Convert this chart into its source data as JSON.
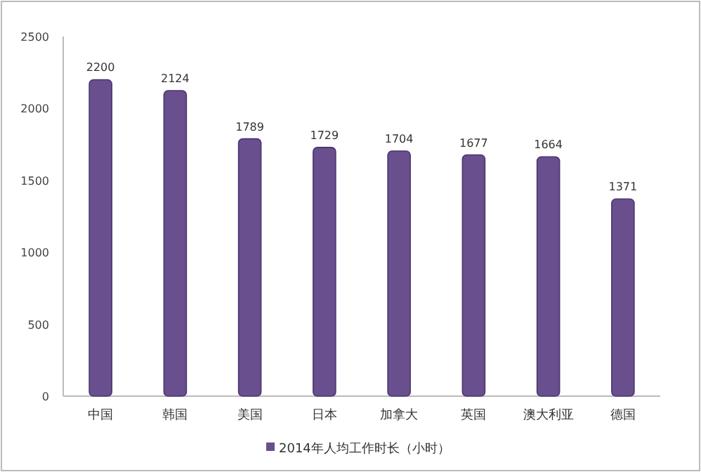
{
  "chart_data": {
    "type": "bar",
    "categories": [
      "中国",
      "韩国",
      "美国",
      "日本",
      "加拿大",
      "英国",
      "澳大利亚",
      "德国"
    ],
    "series": [
      {
        "name": "2014年人均工作时长（小时）",
        "color": "#6a4f8e",
        "values": [
          2200,
          2124,
          1789,
          1729,
          1704,
          1677,
          1664,
          1371
        ]
      }
    ],
    "ylim": [
      0,
      2500
    ],
    "yticks": [
      0,
      500,
      1000,
      1500,
      2000,
      2500
    ],
    "data_labels": true,
    "legend": "bottom"
  }
}
